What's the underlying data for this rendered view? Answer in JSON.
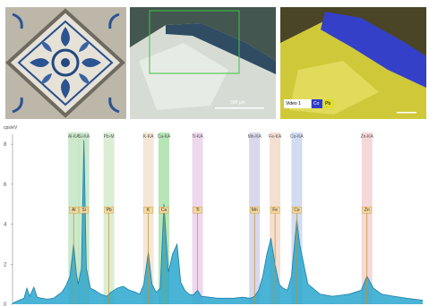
{
  "images": {
    "tile": {
      "icon": "azulejo-tile-icon"
    },
    "micrograph": {
      "icon": "micrograph-cross-section-icon",
      "scale_label": "300 µm"
    },
    "eds_map": {
      "icon": "eds-element-map-icon",
      "legend": [
        "Video 1",
        "Co",
        "Pb"
      ]
    }
  },
  "chart_data": {
    "type": "area",
    "ylabel": "cps/eV",
    "yticks": [
      "8",
      "6",
      "4",
      "2",
      "0"
    ],
    "ylim": [
      0,
      8.5
    ],
    "xlim": [
      0,
      10
    ],
    "fill_color": "#2aa7cf",
    "line_color": "#1b7fa8",
    "series": [
      {
        "x": [
          0,
          0.28,
          0.35,
          0.42,
          0.52,
          0.6,
          0.7,
          0.85,
          1.0,
          1.1,
          1.2,
          1.3,
          1.4,
          1.49,
          1.56,
          1.6,
          1.68,
          1.74,
          1.8,
          1.9,
          2.0,
          2.15,
          2.3,
          2.4,
          2.55,
          2.7,
          2.85,
          3.0,
          3.1,
          3.2,
          3.31,
          3.4,
          3.5,
          3.6,
          3.69,
          3.8,
          3.9,
          4.01,
          4.1,
          4.2,
          4.3,
          4.4,
          4.51,
          4.6,
          4.8,
          5.0,
          5.2,
          5.4,
          5.6,
          5.8,
          5.9,
          6.0,
          6.1,
          6.2,
          6.3,
          6.4,
          6.5,
          6.6,
          6.7,
          6.8,
          6.93,
          7.0,
          7.2,
          7.5,
          7.8,
          8.2,
          8.5,
          8.64,
          8.8,
          9.0,
          9.3,
          9.6,
          10.0
        ],
        "y": [
          0.05,
          0.3,
          0.8,
          0.4,
          0.85,
          0.35,
          0.3,
          0.25,
          0.3,
          0.45,
          0.6,
          0.9,
          1.4,
          3.0,
          1.5,
          1.0,
          1.8,
          8.2,
          1.8,
          0.8,
          0.7,
          0.5,
          0.4,
          0.6,
          0.8,
          0.9,
          0.7,
          0.6,
          0.5,
          1.0,
          2.6,
          1.0,
          0.6,
          0.8,
          5.0,
          1.6,
          2.5,
          3.0,
          1.1,
          0.7,
          0.5,
          0.45,
          0.7,
          0.4,
          0.35,
          0.3,
          0.3,
          0.3,
          0.35,
          0.3,
          0.4,
          0.7,
          1.4,
          2.5,
          3.3,
          2.0,
          1.0,
          0.8,
          0.7,
          1.4,
          4.2,
          3.0,
          1.0,
          0.5,
          0.4,
          0.5,
          0.7,
          1.4,
          0.8,
          0.5,
          0.4,
          0.3,
          0.2
        ]
      }
    ],
    "label_groups": [
      {
        "text": "Al-KA",
        "x": 1.49,
        "color": "#8fcf8f"
      },
      {
        "text": "Si-KA",
        "x": 1.74,
        "color": "#8fcf8f"
      },
      {
        "text": "Pb-M",
        "x": 2.35,
        "color": "#aed9a0"
      },
      {
        "text": "K-KA",
        "x": 3.31,
        "color": "#e8c9a8"
      },
      {
        "text": "Ca-KA",
        "x": 3.69,
        "color": "#5ec85e"
      },
      {
        "text": "Ti-KA",
        "x": 4.51,
        "color": "#d8a8d8"
      },
      {
        "text": "Mn-KA",
        "x": 5.9,
        "color": "#a8a8d8"
      },
      {
        "text": "Fe-KA",
        "x": 6.4,
        "color": "#e8b898"
      },
      {
        "text": "Co-KA",
        "x": 6.93,
        "color": "#9ab0e0"
      },
      {
        "text": "Zn-KA",
        "x": 8.64,
        "color": "#e8a8a8"
      }
    ],
    "marker_labels": [
      {
        "text": "Al",
        "x": 1.49
      },
      {
        "text": "Si",
        "x": 1.74
      },
      {
        "text": "Pb",
        "x": 2.35
      },
      {
        "text": "K",
        "x": 3.31
      },
      {
        "text": "Ca",
        "x": 3.69
      },
      {
        "text": "Ti",
        "x": 4.51
      },
      {
        "text": "Mn",
        "x": 5.9
      },
      {
        "text": "Fe",
        "x": 6.4
      },
      {
        "text": "Co",
        "x": 6.93
      },
      {
        "text": "Zn",
        "x": 8.64
      }
    ]
  }
}
